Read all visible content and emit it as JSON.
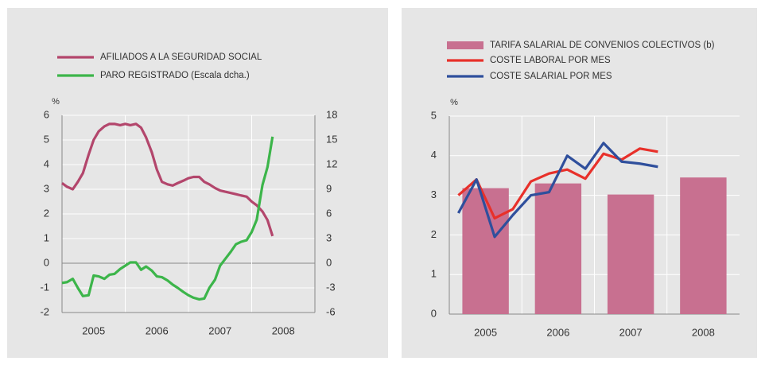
{
  "chart_data": [
    {
      "type": "line",
      "ylabel": "%",
      "categories": [
        "2005",
        "2006",
        "2007",
        "2008"
      ],
      "xlim": [
        2005,
        2009
      ],
      "ylim": [
        -2,
        6
      ],
      "yticks": [
        -2,
        -1,
        0,
        1,
        2,
        3,
        4,
        5,
        6
      ],
      "y2lim": [
        -6,
        18
      ],
      "y2ticks": [
        -6,
        -3,
        0,
        3,
        6,
        9,
        12,
        15,
        18
      ],
      "x": [
        2005,
        2005.08,
        2005.17,
        2005.25,
        2005.33,
        2005.42,
        2005.5,
        2005.58,
        2005.67,
        2005.75,
        2005.83,
        2005.92,
        2006,
        2006.08,
        2006.17,
        2006.25,
        2006.33,
        2006.42,
        2006.5,
        2006.58,
        2006.67,
        2006.75,
        2006.83,
        2006.92,
        2007,
        2007.08,
        2007.17,
        2007.25,
        2007.33,
        2007.42,
        2007.5,
        2007.58,
        2007.67,
        2007.75,
        2007.83,
        2007.92,
        2008,
        2008.08,
        2008.17,
        2008.25,
        2008.33
      ],
      "series": [
        {
          "name": "AFILIADOS A LA SEGURIDAD SOCIAL",
          "color": "#b3466c",
          "values": [
            3.25,
            3.1,
            3.0,
            3.3,
            3.65,
            4.4,
            5.0,
            5.35,
            5.55,
            5.65,
            5.65,
            5.6,
            5.65,
            5.6,
            5.65,
            5.5,
            5.1,
            4.5,
            3.8,
            3.3,
            3.2,
            3.15,
            3.25,
            3.35,
            3.45,
            3.5,
            3.5,
            3.3,
            3.2,
            3.05,
            2.95,
            2.9,
            2.85,
            2.8,
            2.75,
            2.7,
            2.5,
            2.35,
            2.1,
            1.75,
            1.1
          ]
        },
        {
          "name": "PARO REGISTRADO (Escala dcha.)",
          "color": "#3cb54a",
          "axis": "y2",
          "values": [
            -2.4,
            -2.3,
            -1.9,
            -3.0,
            -4.0,
            -3.9,
            -1.5,
            -1.6,
            -1.9,
            -1.4,
            -1.3,
            -0.7,
            -0.3,
            0.1,
            0.1,
            -0.8,
            -0.4,
            -0.9,
            -1.6,
            -1.7,
            -2.1,
            -2.6,
            -3.0,
            -3.5,
            -3.9,
            -4.2,
            -4.4,
            -4.3,
            -3.0,
            -2.0,
            -0.3,
            0.5,
            1.4,
            2.3,
            2.6,
            2.8,
            3.8,
            5.3,
            9.5,
            11.7,
            15.4
          ]
        }
      ]
    },
    {
      "type": "bar",
      "ylabel": "%",
      "categories": [
        "2005",
        "2006",
        "2007",
        "2008"
      ],
      "xlim": [
        2005,
        2009
      ],
      "ylim": [
        0,
        5
      ],
      "yticks": [
        0,
        1,
        2,
        3,
        4,
        5
      ],
      "x": [
        2005.125,
        2005.375,
        2005.625,
        2005.875,
        2006.125,
        2006.375,
        2006.625,
        2006.875,
        2007.125,
        2007.375,
        2007.625,
        2007.875
      ],
      "series": [
        {
          "name": "TARIFA SALARIAL DE CONVENIOS COLECTIVOS (b)",
          "color": "#c87090",
          "type": "bar",
          "values": [
            3.18,
            3.3,
            3.02,
            3.45
          ]
        },
        {
          "name": "COSTE LABORAL POR MES",
          "color": "#e8302a",
          "type": "line",
          "values": [
            3.0,
            3.4,
            2.42,
            2.65,
            3.35,
            3.55,
            3.65,
            3.42,
            4.05,
            3.9,
            4.18,
            4.1
          ]
        },
        {
          "name": "COSTE SALARIAL POR MES",
          "color": "#2f4f9c",
          "type": "line",
          "values": [
            2.55,
            3.4,
            1.95,
            2.5,
            3.0,
            3.08,
            4.0,
            3.67,
            4.32,
            3.85,
            3.8,
            3.72
          ]
        }
      ]
    }
  ]
}
